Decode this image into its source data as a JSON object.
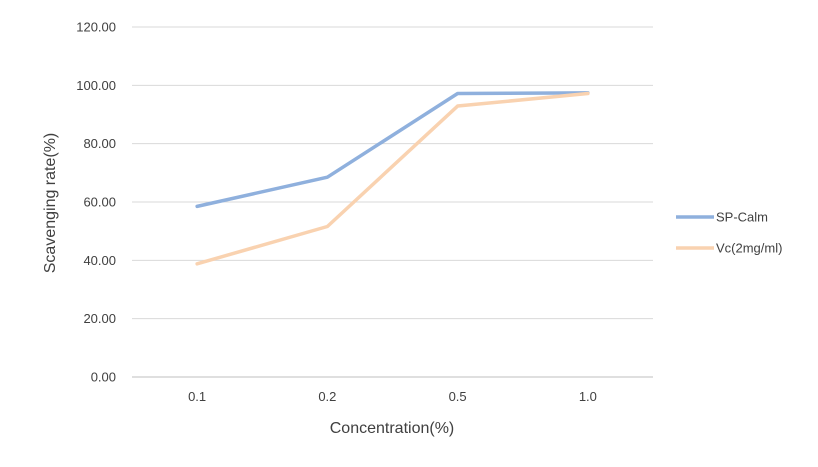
{
  "chart_data": {
    "type": "line",
    "categories": [
      "0.1",
      "0.2",
      "0.5",
      "1.0"
    ],
    "series": [
      {
        "name": "SP-Calm",
        "values": [
          58.5,
          68.5,
          97.2,
          97.4
        ],
        "color": "#8FB0DD"
      },
      {
        "name": "Vc(2mg/ml)",
        "values": [
          38.8,
          51.6,
          92.9,
          97.2
        ],
        "color": "#F9D2B0"
      }
    ],
    "title": "",
    "xlabel": "Concentration(%)",
    "ylabel": "Scavenging rate(%)",
    "ylim": [
      0,
      120
    ],
    "yticks": [
      "0.00",
      "20.00",
      "40.00",
      "60.00",
      "80.00",
      "100.00",
      "120.00"
    ],
    "grid": true,
    "legend_position": "right",
    "gridline_color": "#D9D9D9",
    "axis_color": "#BFBFBF"
  }
}
